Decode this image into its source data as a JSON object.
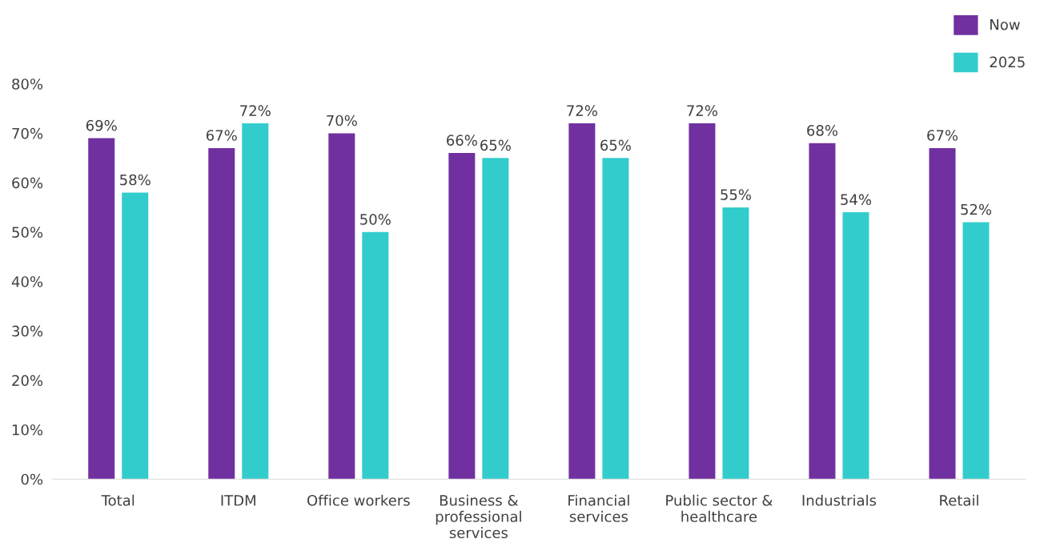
{
  "chart_data": {
    "type": "bar",
    "categories": [
      "Total",
      "ITDM",
      "Office workers",
      "Business & professional services",
      "Financial services",
      "Public sector & healthcare",
      "Industrials",
      "Retail"
    ],
    "series": [
      {
        "name": "Now",
        "color": "#7030a0",
        "values": [
          69,
          67,
          70,
          66,
          72,
          72,
          68,
          67
        ],
        "value_labels": [
          "69%",
          "67%",
          "70%",
          "66%",
          "72%",
          "72%",
          "68%",
          "67%"
        ]
      },
      {
        "name": "2025",
        "color": "#33cccc",
        "values": [
          58,
          72,
          50,
          65,
          65,
          55,
          54,
          52
        ],
        "value_labels": [
          "58%",
          "72%",
          "50%",
          "65%",
          "65%",
          "55%",
          "54%",
          "52%"
        ]
      }
    ],
    "ylim": [
      0,
      80
    ],
    "yticks": [
      {
        "value": 0,
        "label": "0%"
      },
      {
        "value": 10,
        "label": "10%"
      },
      {
        "value": 20,
        "label": "20%"
      },
      {
        "value": 30,
        "label": "30%"
      },
      {
        "value": 40,
        "label": "40%"
      },
      {
        "value": 50,
        "label": "50%"
      },
      {
        "value": 60,
        "label": "60%"
      },
      {
        "value": 70,
        "label": "70%"
      },
      {
        "value": 80,
        "label": "80%"
      }
    ],
    "grid": false,
    "legend": "top right"
  }
}
